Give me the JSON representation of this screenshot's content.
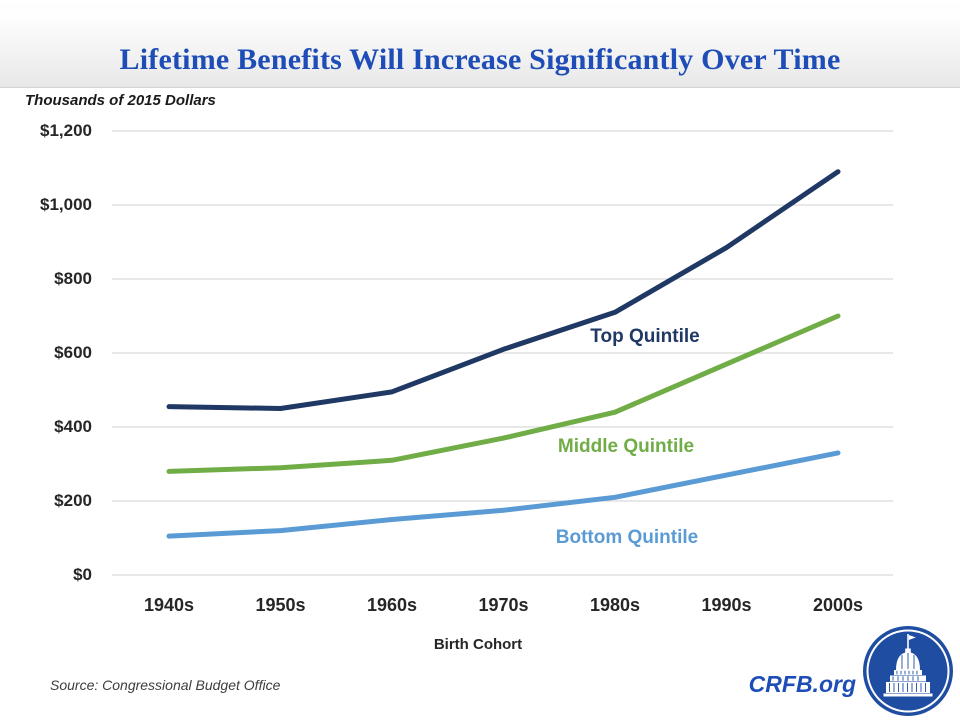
{
  "slide": {
    "title": "Lifetime Benefits Will Increase Significantly Over Time",
    "units_label": "Thousands of 2015 Dollars",
    "source": "Source: Congressional Budget Office",
    "brand": "CRFB.org",
    "logo_icon": "capitol-dome-logo"
  },
  "colors": {
    "title_blue": "#1F4DB7",
    "top_quintile_navy": "#1F3864",
    "middle_quintile_green": "#70AD47",
    "bottom_quintile_blue": "#5B9BD5",
    "gridline": "#D9D9D9",
    "axis_text": "#262626",
    "logo_blue": "#1E4DA1"
  },
  "chart_data": {
    "type": "line",
    "title": "Lifetime Benefits Will Increase Significantly Over Time",
    "subtitle": "Thousands of 2015 Dollars",
    "xlabel": "Birth Cohort",
    "ylabel": "Thousands of 2015 Dollars",
    "categories": [
      "1940s",
      "1950s",
      "1960s",
      "1970s",
      "1980s",
      "1990s",
      "2000s"
    ],
    "series": [
      {
        "id": "top-quintile",
        "name": "Top Quintile",
        "color": "#1F3864",
        "values": [
          455,
          450,
          495,
          610,
          710,
          885,
          1090
        ]
      },
      {
        "id": "middle-quintile",
        "name": "Middle Quintile",
        "color": "#70AD47",
        "values": [
          280,
          290,
          310,
          370,
          440,
          570,
          700
        ]
      },
      {
        "id": "bottom-quintile",
        "name": "Bottom Quintile",
        "color": "#5B9BD5",
        "values": [
          105,
          120,
          150,
          175,
          210,
          270,
          330
        ]
      }
    ],
    "y_ticks": [
      {
        "label": "$1,200",
        "value": 1200
      },
      {
        "label": "$1,000",
        "value": 1000
      },
      {
        "label": "$800",
        "value": 800
      },
      {
        "label": "$600",
        "value": 600
      },
      {
        "label": "$400",
        "value": 400
      },
      {
        "label": "$200",
        "value": 200
      },
      {
        "label": "$0",
        "value": 0
      }
    ],
    "ylim": [
      0,
      1200
    ],
    "grid": true,
    "legend_position": "inline-labels-on-lines"
  }
}
